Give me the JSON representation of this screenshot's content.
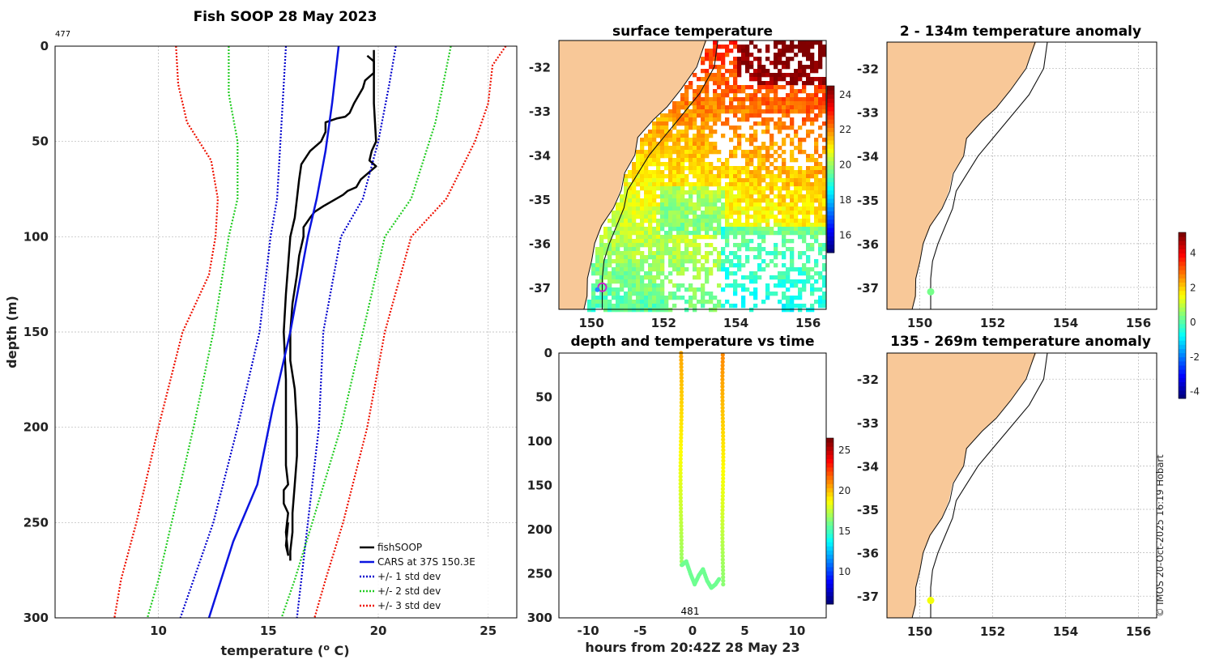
{
  "figure_title": "Fish SOOP 28 May 2023",
  "copyright": "© IMOS 20-Oct-2025 16:19 Hobart",
  "colors": {
    "fishsoop": "#000000",
    "cars": "#0a14e0",
    "std1": "#0000cc",
    "std2": "#22cc22",
    "std3": "#ee1100",
    "land": "#f8c898"
  },
  "icons": {
    "position_marker": "circle-marker-icon"
  },
  "chart_data": [
    {
      "type": "line",
      "title": "Fish SOOP 28 May 2023",
      "corner_label": "477",
      "xlabel": "temperature (",
      "xlabel_sup": "o",
      "xlabel_end": " C)",
      "ylabel": "depth (m)",
      "xlim": [
        5.3,
        26.3
      ],
      "ylim": [
        300,
        0
      ],
      "xticks": [
        10,
        15,
        20,
        25
      ],
      "yticks": [
        0,
        50,
        100,
        150,
        200,
        250,
        300
      ],
      "legend": [
        "fishSOOP",
        "CARS at 37S 150.3E",
        "+/- 1 std dev",
        "+/- 2 std dev",
        "+/- 3 std dev"
      ],
      "series": [
        {
          "name": "fishSOOP down",
          "style": "solid",
          "color": "fishsoop",
          "points": [
            [
              19.8,
              2
            ],
            [
              19.8,
              30
            ],
            [
              19.9,
              50
            ],
            [
              19.7,
              55
            ],
            [
              19.6,
              60
            ],
            [
              19.9,
              63
            ],
            [
              19.2,
              70
            ],
            [
              19.0,
              74
            ],
            [
              18.6,
              76
            ],
            [
              18.4,
              78
            ],
            [
              18.1,
              80
            ],
            [
              17.5,
              84
            ],
            [
              17.1,
              87
            ],
            [
              16.9,
              90
            ],
            [
              16.6,
              95
            ],
            [
              16.6,
              100
            ],
            [
              16.4,
              110
            ],
            [
              16.3,
              120
            ],
            [
              16.1,
              135
            ],
            [
              16.0,
              150
            ],
            [
              16.0,
              165
            ],
            [
              16.2,
              180
            ],
            [
              16.3,
              200
            ],
            [
              16.3,
              215
            ],
            [
              16.2,
              230
            ],
            [
              16.1,
              245
            ],
            [
              16.1,
              255
            ],
            [
              16.0,
              265
            ],
            [
              16.0,
              270
            ]
          ]
        },
        {
          "name": "fishSOOP up",
          "style": "solid",
          "color": "fishsoop",
          "points": [
            [
              15.9,
              250
            ],
            [
              15.8,
              262
            ],
            [
              15.9,
              267
            ],
            [
              15.8,
              255
            ],
            [
              15.9,
              245
            ],
            [
              15.7,
              240
            ],
            [
              15.7,
              233
            ],
            [
              15.9,
              230
            ],
            [
              15.8,
              220
            ],
            [
              15.8,
              200
            ],
            [
              15.8,
              175
            ],
            [
              15.7,
              150
            ],
            [
              15.8,
              130
            ],
            [
              15.9,
              115
            ],
            [
              16.0,
              100
            ],
            [
              16.2,
              90
            ],
            [
              16.3,
              80
            ],
            [
              16.4,
              70
            ],
            [
              16.5,
              62
            ],
            [
              16.9,
              55
            ],
            [
              17.4,
              50
            ],
            [
              17.6,
              45
            ],
            [
              17.6,
              40
            ],
            [
              18.1,
              38
            ],
            [
              18.5,
              37
            ],
            [
              18.7,
              35
            ],
            [
              18.9,
              30
            ],
            [
              19.3,
              22
            ],
            [
              19.4,
              18
            ],
            [
              19.6,
              16
            ],
            [
              19.8,
              14
            ],
            [
              19.8,
              8
            ],
            [
              19.5,
              5
            ]
          ]
        },
        {
          "name": "CARS at 37S 150.3E",
          "style": "solid",
          "color": "cars",
          "points": [
            [
              18.2,
              0
            ],
            [
              17.9,
              30
            ],
            [
              17.6,
              55
            ],
            [
              17.2,
              80
            ],
            [
              16.8,
              100
            ],
            [
              16.0,
              150
            ],
            [
              15.2,
              190
            ],
            [
              14.5,
              230
            ],
            [
              13.4,
              260
            ],
            [
              12.3,
              300
            ]
          ]
        },
        {
          "name": "+1 std dev",
          "style": "dotted",
          "color": "std1",
          "points": [
            [
              20.8,
              0
            ],
            [
              20.5,
              20
            ],
            [
              20.0,
              50
            ],
            [
              19.3,
              80
            ],
            [
              18.3,
              100
            ],
            [
              17.5,
              150
            ],
            [
              17.3,
              200
            ],
            [
              16.8,
              250
            ],
            [
              16.5,
              280
            ],
            [
              16.3,
              300
            ]
          ]
        },
        {
          "name": "-1 std dev",
          "style": "dotted",
          "color": "std1",
          "points": [
            [
              15.8,
              0
            ],
            [
              15.6,
              40
            ],
            [
              15.4,
              80
            ],
            [
              15.1,
              100
            ],
            [
              14.6,
              150
            ],
            [
              13.6,
              200
            ],
            [
              12.5,
              250
            ],
            [
              11.6,
              280
            ],
            [
              11.0,
              300
            ]
          ]
        },
        {
          "name": "+2 std dev",
          "style": "dotted",
          "color": "std2",
          "points": [
            [
              23.3,
              0
            ],
            [
              22.6,
              40
            ],
            [
              21.5,
              80
            ],
            [
              20.3,
              100
            ],
            [
              19.3,
              150
            ],
            [
              18.3,
              200
            ],
            [
              17.0,
              250
            ],
            [
              16.2,
              280
            ],
            [
              15.6,
              300
            ]
          ]
        },
        {
          "name": "-2 std dev",
          "style": "dotted",
          "color": "std2",
          "points": [
            [
              13.2,
              0
            ],
            [
              13.2,
              25
            ],
            [
              13.6,
              50
            ],
            [
              13.6,
              80
            ],
            [
              13.2,
              100
            ],
            [
              12.5,
              150
            ],
            [
              11.6,
              200
            ],
            [
              10.6,
              250
            ],
            [
              10.0,
              280
            ],
            [
              9.5,
              300
            ]
          ]
        },
        {
          "name": "+3 std dev",
          "style": "dotted",
          "color": "std3",
          "points": [
            [
              25.8,
              0
            ],
            [
              25.2,
              10
            ],
            [
              25.0,
              30
            ],
            [
              24.4,
              50
            ],
            [
              23.1,
              80
            ],
            [
              21.5,
              100
            ],
            [
              20.3,
              150
            ],
            [
              19.5,
              200
            ],
            [
              18.4,
              250
            ],
            [
              17.6,
              280
            ],
            [
              17.1,
              300
            ]
          ]
        },
        {
          "name": "-3 std dev",
          "style": "dotted",
          "color": "std3",
          "points": [
            [
              10.8,
              0
            ],
            [
              10.9,
              20
            ],
            [
              11.3,
              40
            ],
            [
              12.4,
              60
            ],
            [
              12.7,
              80
            ],
            [
              12.6,
              100
            ],
            [
              12.3,
              120
            ],
            [
              11.1,
              150
            ],
            [
              10.0,
              200
            ],
            [
              9.0,
              250
            ],
            [
              8.3,
              280
            ],
            [
              8.0,
              300
            ]
          ]
        }
      ]
    },
    {
      "type": "heatmap",
      "title": "surface temperature",
      "xlim": [
        149.1,
        156.5
      ],
      "ylim": [
        -37.5,
        -31.4
      ],
      "xticks": [
        150,
        152,
        154,
        156
      ],
      "yticks": [
        -32,
        -33,
        -34,
        -35,
        -36,
        -37
      ],
      "colorbar": {
        "min": 15,
        "max": 24.5,
        "ticks": [
          16,
          18,
          20,
          22,
          24
        ]
      },
      "marker": {
        "lon": 150.3,
        "lat": -37.0
      }
    },
    {
      "type": "scatter",
      "title": "depth and temperature vs time",
      "corner_label": "481",
      "xlabel": "hours from 20:42Z 28 May 23",
      "xlim": [
        -12.8,
        12.8
      ],
      "ylim": [
        300,
        0
      ],
      "xticks": [
        -10,
        -5,
        0,
        5,
        10
      ],
      "yticks": [
        0,
        50,
        100,
        150,
        200,
        250,
        300
      ],
      "colorbar": {
        "min": 6,
        "max": 26.5,
        "ticks": [
          10,
          15,
          20,
          25
        ]
      },
      "descent": {
        "t": [
          -1.1,
          -1.1,
          -1.1,
          -1.2,
          -1.1,
          -1.0
        ],
        "depth": [
          0,
          50,
          100,
          150,
          200,
          240
        ]
      },
      "bottom": {
        "t": [
          -1.0,
          -0.6,
          -0.2,
          0.2,
          0.6,
          1.0,
          1.4,
          1.8,
          2.2,
          2.6
        ],
        "depth": [
          240,
          236,
          250,
          262,
          252,
          245,
          258,
          266,
          262,
          255
        ]
      },
      "ascent": {
        "t": [
          2.8,
          2.9,
          2.9,
          2.9,
          2.9
        ],
        "depth": [
          260,
          200,
          150,
          100,
          0
        ]
      }
    },
    {
      "type": "scatter",
      "title": "2 - 134m temperature anomaly",
      "xlim": [
        149.1,
        156.5
      ],
      "ylim": [
        -37.5,
        -31.4
      ],
      "xticks": [
        150,
        152,
        154,
        156
      ],
      "yticks": [
        -32,
        -33,
        -34,
        -35,
        -36,
        -37
      ],
      "point": {
        "lon": 150.3,
        "lat": -37.1,
        "anomaly": 0.3
      }
    },
    {
      "type": "scatter",
      "title": "135 - 269m temperature anomaly",
      "xlim": [
        149.1,
        156.5
      ],
      "ylim": [
        -37.5,
        -31.4
      ],
      "xticks": [
        150,
        152,
        154,
        156
      ],
      "yticks": [
        -32,
        -33,
        -34,
        -35,
        -36,
        -37
      ],
      "point": {
        "lon": 150.3,
        "lat": -37.1,
        "anomaly": 1.5
      }
    }
  ],
  "anomaly_colorbar": {
    "min": -4.4,
    "max": 5.2,
    "ticks": [
      -4,
      -2,
      0,
      2,
      4
    ]
  },
  "coastline": [
    [
      153.2,
      -31.4
    ],
    [
      152.9,
      -32.0
    ],
    [
      152.5,
      -32.5
    ],
    [
      152.1,
      -32.9
    ],
    [
      151.7,
      -33.2
    ],
    [
      151.3,
      -33.6
    ],
    [
      151.2,
      -34.0
    ],
    [
      150.9,
      -34.4
    ],
    [
      150.8,
      -34.8
    ],
    [
      150.6,
      -35.2
    ],
    [
      150.3,
      -35.6
    ],
    [
      150.1,
      -36.0
    ],
    [
      150.0,
      -36.4
    ],
    [
      149.9,
      -36.8
    ],
    [
      149.9,
      -37.2
    ],
    [
      149.8,
      -37.5
    ]
  ],
  "shelf_contour": [
    [
      153.5,
      -31.4
    ],
    [
      153.4,
      -32.0
    ],
    [
      153.0,
      -32.6
    ],
    [
      152.4,
      -33.2
    ],
    [
      152.0,
      -33.6
    ],
    [
      151.6,
      -34.0
    ],
    [
      151.3,
      -34.4
    ],
    [
      151.0,
      -34.8
    ],
    [
      150.9,
      -35.2
    ],
    [
      150.7,
      -35.6
    ],
    [
      150.5,
      -36.0
    ],
    [
      150.35,
      -36.4
    ],
    [
      150.3,
      -36.8
    ],
    [
      150.3,
      -37.5
    ]
  ]
}
